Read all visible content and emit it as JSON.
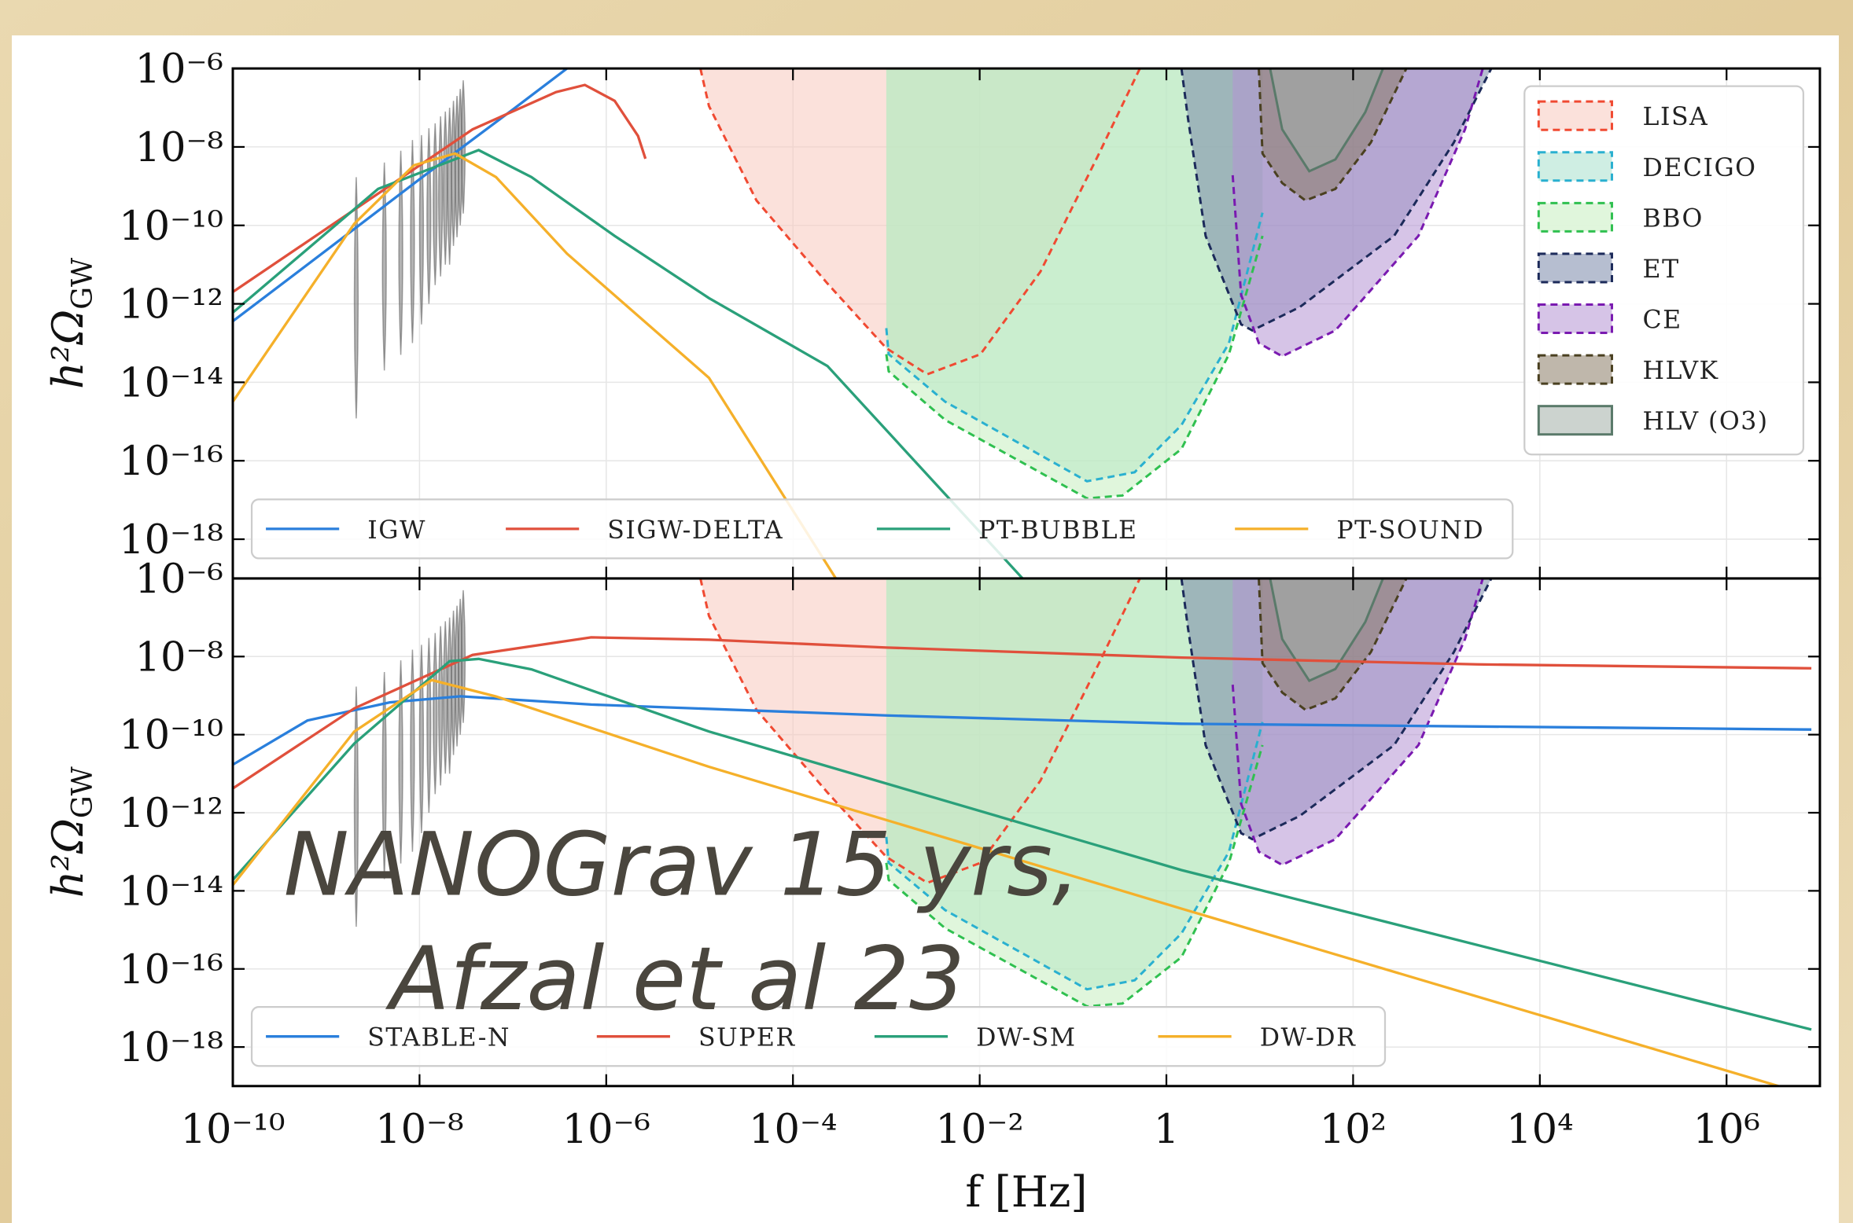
{
  "chart_data": [
    {
      "type": "line",
      "ylabel": "h²Ω",
      "ylabel_sub": "GW",
      "grid": true,
      "xlim": [
        1e-10,
        10000000.0
      ],
      "ylim": [
        1e-19,
        1e-06
      ],
      "xticks": [
        {
          "value": 1e-10,
          "label": "10⁻¹⁰"
        },
        {
          "value": 1e-08,
          "label": "10⁻⁸"
        },
        {
          "value": 1e-06,
          "label": "10⁻⁶"
        },
        {
          "value": 0.0001,
          "label": "10⁻⁴"
        },
        {
          "value": 0.01,
          "label": "10⁻²"
        },
        1,
        {
          "value": 100,
          "label": "10²"
        },
        {
          "value": 10000,
          "label": "10⁴"
        },
        {
          "value": 1000000,
          "label": "10⁶"
        }
      ],
      "yticks": [
        {
          "value": 1e-06,
          "label": "10⁻⁶"
        },
        {
          "value": 1e-08,
          "label": "10⁻⁸"
        },
        {
          "value": 1e-10,
          "label": "10⁻¹⁰"
        },
        {
          "value": 1e-12,
          "label": "10⁻¹²"
        },
        {
          "value": 1e-14,
          "label": "10⁻¹⁴"
        },
        {
          "value": 1e-16,
          "label": "10⁻¹⁶"
        },
        {
          "value": 1e-18,
          "label": "10⁻¹⁸"
        }
      ],
      "series": [
        {
          "name": "IGW",
          "color": "#2a7fdc",
          "x": [
            1e-10,
            1e-09,
            1e-08,
            1e-07,
            3.8e-07
          ],
          "values": [
            3.6e-13,
            2.3e-11,
            1.5e-09,
            9e-08,
            1e-06
          ]
        },
        {
          "name": "SIGW-DELTA",
          "color": "#e0503c",
          "x": [
            1e-10,
            2e-09,
            3.7e-08,
            2.9e-07,
            5.9e-07,
            1.23e-06,
            2.19e-06,
            2.63e-06
          ],
          "values": [
            2e-12,
            2.5e-10,
            2.8e-08,
            2.5e-07,
            3.8e-07,
            1.5e-07,
            1.9e-08,
            5e-09
          ]
        },
        {
          "name": "PT-BUBBLE",
          "color": "#2aa07a",
          "x": [
            1e-10,
            3.6e-09,
            4.3e-08,
            1.58e-07,
            1.23e-06,
            1.26e-05,
            0.000234,
            0.0288
          ],
          "values": [
            6e-13,
            8.5e-10,
            8.3e-09,
            1.7e-09,
            5.4e-11,
            1.4e-12,
            2.6e-14,
            1e-19
          ]
        },
        {
          "name": "PT-SOUND",
          "color": "#f5b02a",
          "x": [
            1e-10,
            2e-09,
            8.7e-09,
            2.4e-08,
            6.6e-08,
            3.8e-07,
            1.26e-05,
            0.000288
          ],
          "values": [
            3.2e-15,
            1.1e-10,
            3.4e-09,
            6.8e-09,
            1.7e-09,
            1.9e-11,
            1.3e-14,
            1e-19
          ]
        }
      ],
      "regions": [
        {
          "name": "LISA",
          "color": "#f04a32",
          "fill": "#f8c8bd",
          "x": [
            1.02e-05,
            1.26e-05,
            4.07e-05,
            0.000234,
            0.001,
            0.00275,
            0.0102,
            0.0447,
            0.19,
            0.52
          ],
          "values": [
            1e-06,
            1.1e-07,
            4.3e-10,
            3.3e-12,
            7.4e-14,
            1.6e-14,
            5.2e-14,
            6.6e-12,
            6.8e-09,
            1e-06
          ]
        },
        {
          "name": "DECIGO",
          "color": "#2ab0d0",
          "fill": "#a8e0cc",
          "x": [
            0.001,
            0.00106,
            0.00427,
            0.141,
            0.457,
            1.45,
            4.68,
            10.7
          ],
          "values": [
            2.4e-13,
            5.2e-14,
            3.2e-15,
            3e-17,
            5.1e-17,
            8.1e-16,
            1e-13,
            2.1e-10
          ]
        },
        {
          "name": "BBO",
          "color": "#30c050",
          "fill": "#c6eec0",
          "x": [
            0.001,
            0.00106,
            0.00427,
            0.141,
            0.339,
            1.45,
            4.68,
            10.7
          ],
          "values": [
            5.2e-14,
            1.9e-14,
            1.1e-15,
            1.1e-17,
            1.3e-17,
            2e-16,
            5.2e-14,
            5.4e-11
          ]
        },
        {
          "name": "ET",
          "color": "#1c2a5a",
          "fill": "#7a88aa",
          "x": [
            1.45,
            1.7,
            2.63,
            6.31,
            8.32,
            26.9,
            275,
            1200,
            3020
          ],
          "values": [
            1e-06,
            5.5e-08,
            5.4e-11,
            3e-13,
            2.1e-13,
            8.3e-13,
            5.4e-11,
            1.3e-08,
            1e-06
          ]
        },
        {
          "name": "CE",
          "color": "#7a1ab0",
          "fill": "#b494d4",
          "x": [
            5.13,
            6.31,
            9.77,
            17.4,
            64.6,
            501,
            1580,
            2450
          ],
          "values": [
            1.9e-09,
            1.7e-12,
            1e-13,
            4.6e-14,
            2.1e-13,
            5.4e-11,
            2.8e-08,
            1e-06
          ]
        },
        {
          "name": "HLVK",
          "color": "#4a4020",
          "fill": "#8a7c66",
          "x": [
            9.77,
            10.7,
            17.4,
            30.9,
            64.6,
            155,
            372
          ],
          "values": [
            1e-06,
            6.8e-09,
            1.2e-09,
            4.3e-10,
            8.5e-10,
            1.3e-08,
            1e-06
          ]
        },
        {
          "name": "HLV (O3)",
          "color": "#5a7a6a",
          "fill": "#a2aea8",
          "x": [
            12.9,
            17.4,
            33.9,
            64.6,
            135,
            209
          ],
          "values": [
            1e-06,
            2.8e-08,
            2.4e-09,
            4.8e-09,
            7.7e-08,
            1e-06
          ]
        }
      ],
      "nanograv": {
        "x": [
          2.1e-09,
          4.2e-09,
          6.3e-09,
          8.4e-09,
          1.05e-08,
          1.26e-08,
          1.47e-08,
          1.68e-08,
          1.89e-08,
          2.1e-08,
          2.31e-08,
          2.52e-08,
          2.73e-08,
          2.94e-08
        ],
        "low": [
          1.2e-15,
          2e-14,
          5e-14,
          1e-13,
          3e-13,
          1e-12,
          3e-12,
          5e-12,
          1e-11,
          1e-11,
          3e-11,
          5e-11,
          1e-10,
          2e-10
        ],
        "high": [
          1.7e-09,
          4e-09,
          8e-09,
          1.5e-08,
          2e-08,
          3e-08,
          4e-08,
          6e-08,
          8e-08,
          1e-07,
          1.5e-07,
          2e-07,
          3e-07,
          5e-07
        ]
      }
    },
    {
      "type": "line",
      "ylabel": "h²Ω",
      "ylabel_sub": "GW",
      "xlabel": "f [Hz]",
      "grid": true,
      "xlim": [
        1e-10,
        10000000.0
      ],
      "ylim": [
        1e-19,
        1e-06
      ],
      "xticks": [
        {
          "value": 1e-10,
          "label": "10⁻¹⁰"
        },
        {
          "value": 1e-08,
          "label": "10⁻⁸"
        },
        {
          "value": 1e-06,
          "label": "10⁻⁶"
        },
        {
          "value": 0.0001,
          "label": "10⁻⁴"
        },
        {
          "value": 0.01,
          "label": "10⁻²"
        },
        1,
        {
          "value": 100,
          "label": "10²"
        },
        {
          "value": 10000,
          "label": "10⁴"
        },
        {
          "value": 1000000,
          "label": "10⁶"
        }
      ],
      "yticks": [
        {
          "value": 1e-06,
          "label": "10⁻⁶"
        },
        {
          "value": 1e-08,
          "label": "10⁻⁸"
        },
        {
          "value": 1e-10,
          "label": "10⁻¹⁰"
        },
        {
          "value": 1e-12,
          "label": "10⁻¹²"
        },
        {
          "value": 1e-14,
          "label": "10⁻¹⁴"
        },
        {
          "value": 1e-16,
          "label": "10⁻¹⁶"
        },
        {
          "value": 1e-18,
          "label": "10⁻¹⁸"
        }
      ],
      "series": [
        {
          "name": "STABLE-N",
          "color": "#2a7fdc",
          "x": [
            1e-10,
            6.3e-10,
            4.8e-09,
            2.75e-08,
            6.9e-07,
            0.001,
            1.45,
            8100000.0
          ],
          "values": [
            1.7e-11,
            2.3e-10,
            6.7e-10,
            9.6e-10,
            5.9e-10,
            3.1e-10,
            1.9e-10,
            1.35e-10
          ]
        },
        {
          "name": "SUPER",
          "color": "#e0503c",
          "x": [
            1e-10,
            2e-09,
            3.7e-08,
            6.9e-07,
            1.26e-05,
            0.001,
            1.45,
            2140,
            8100000.0
          ],
          "values": [
            4.2e-12,
            4.7e-10,
            1.1e-08,
            3.1e-08,
            2.7e-08,
            1.7e-08,
            9.4e-09,
            6.3e-09,
            5e-09
          ]
        },
        {
          "name": "DW-SM",
          "color": "#2aa07a",
          "x": [
            1e-10,
            2e-09,
            2.1e-08,
            4.3e-08,
            1.58e-07,
            1.26e-05,
            1.45,
            8100000.0
          ],
          "values": [
            1.9e-14,
            5.9e-11,
            7.6e-09,
            8.7e-09,
            4.7e-09,
            1.2e-10,
            3.4e-14,
            2.8e-18
          ]
        },
        {
          "name": "DW-DR",
          "color": "#f5b02a",
          "x": [
            1e-10,
            2e-09,
            1.35e-08,
            6.6e-08,
            1.26e-05,
            1.45,
            3600000.0
          ],
          "values": [
            1.4e-14,
            1.2e-10,
            2.5e-09,
            9.5e-10,
            1.5e-11,
            3.5e-15,
            1e-19
          ]
        }
      ],
      "annotations": [
        "NANOGrav 15 yrs,",
        "Afzal et al 23"
      ]
    }
  ]
}
